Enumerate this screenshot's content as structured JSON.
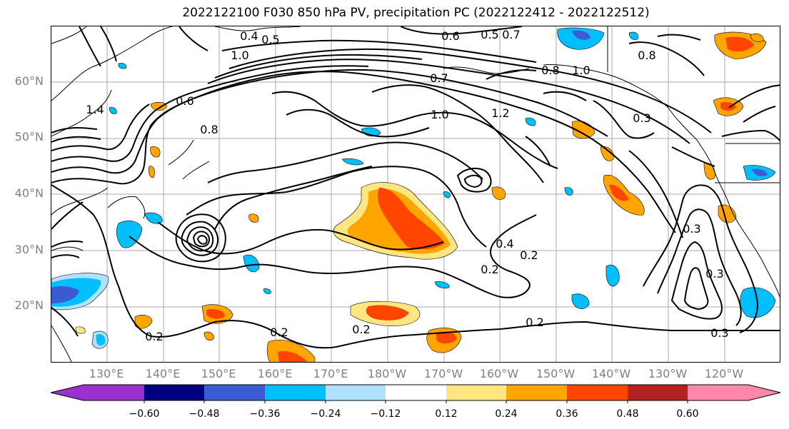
{
  "title": "2022122100 F030 850 hPa PV, precipitation PC (2022122412 - 2022122512)",
  "lat_labels": [
    "60°N",
    "50°N",
    "40°N",
    "30°N",
    "20°N"
  ],
  "lon_labels": [
    "130°E",
    "140°E",
    "150°E",
    "160°E",
    "170°E",
    "180°W",
    "170°W",
    "160°W",
    "150°W",
    "140°W",
    "130°W",
    "120°W"
  ],
  "colorbar": {
    "colors": [
      "#9932cc",
      "#000080",
      "#3a5bd1",
      "#00bfff",
      "#b0e2ff",
      "#ffffff",
      "#ffe680",
      "#ffa500",
      "#ff4500",
      "#b22222",
      "#ff88aa"
    ],
    "tick_labels": [
      "−0.60",
      "−0.48",
      "−0.36",
      "−0.24",
      "−0.12",
      "0.12",
      "0.24",
      "0.36",
      "0.48",
      "0.60"
    ]
  },
  "contour_labels": [
    "0.2",
    "0.2",
    "0.2",
    "0.2",
    "0.2",
    "0.2",
    "0.3",
    "0.3",
    "0.3",
    "0.3",
    "0.4",
    "0.4",
    "0.5",
    "0.5",
    "0.6",
    "0.6",
    "0.7",
    "0.7",
    "0.8",
    "0.8",
    "0.8",
    "1.0",
    "1.0",
    "1.0",
    "1.2",
    "1.4"
  ]
}
